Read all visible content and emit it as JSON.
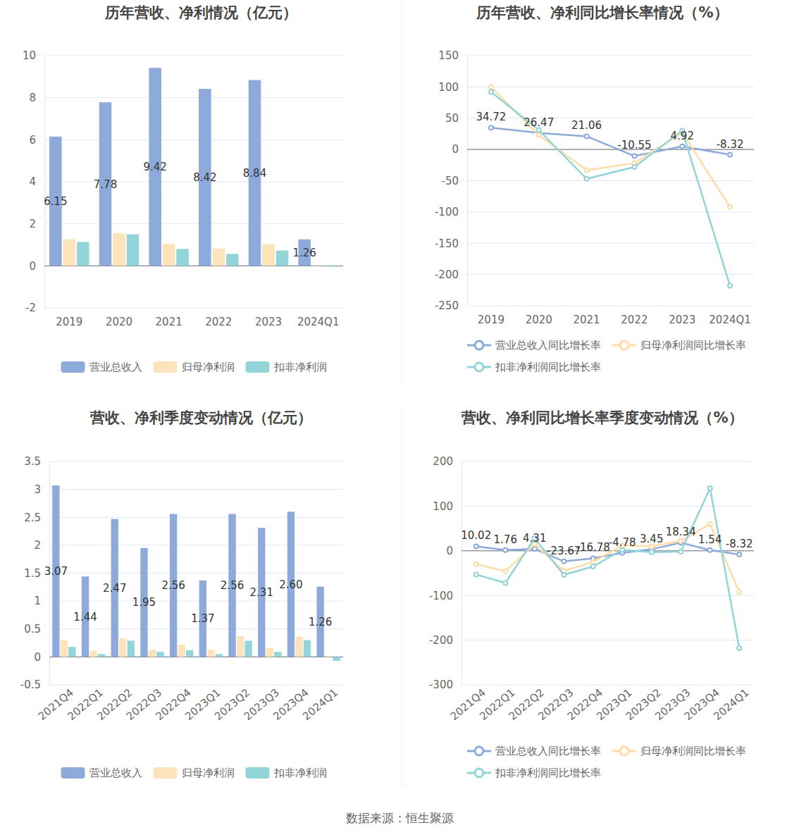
{
  "chart_data": [
    {
      "type": "bar",
      "title": "历年营收、净利情况（亿元）",
      "categories": [
        "2019",
        "2020",
        "2021",
        "2022",
        "2023",
        "2024Q1"
      ],
      "series": [
        {
          "name": "营业总收入",
          "color": "#8eaadb",
          "values": [
            6.15,
            7.78,
            9.42,
            8.42,
            8.84,
            1.26
          ],
          "data_labels": true
        },
        {
          "name": "归母净利润",
          "color": "#fde3bb",
          "values": [
            1.27,
            1.55,
            1.05,
            0.82,
            1.03,
            0.01
          ]
        },
        {
          "name": "扣非净利润",
          "color": "#92d4d8",
          "values": [
            1.14,
            1.5,
            0.8,
            0.57,
            0.73,
            -0.04
          ]
        }
      ],
      "ylim": [
        -2,
        10
      ],
      "yticks": [
        -2,
        0,
        2,
        4,
        6,
        8,
        10
      ],
      "grid": true,
      "legend": "bottom"
    },
    {
      "type": "line",
      "title": "历年营收、净利同比增长率情况（%）",
      "categories": [
        "2019",
        "2020",
        "2021",
        "2022",
        "2023",
        "2024Q1"
      ],
      "series": [
        {
          "name": "营业总收入同比增长率",
          "color": "#8eaadb",
          "values": [
            34.72,
            26.47,
            21.06,
            -10.55,
            4.92,
            -8.32
          ],
          "data_labels": true
        },
        {
          "name": "归母净利润同比增长率",
          "color": "#fddca6",
          "values": [
            100,
            23,
            -33,
            -22,
            27,
            -92
          ]
        },
        {
          "name": "扣非净利润同比增长率",
          "color": "#92d4d8",
          "values": [
            92,
            31,
            -47,
            -28,
            30,
            -218
          ]
        }
      ],
      "ylim": [
        -250,
        150
      ],
      "yticks": [
        -250,
        -200,
        -150,
        -100,
        -50,
        0,
        50,
        100,
        150
      ],
      "grid": true,
      "legend": "bottom",
      "marker": "circle"
    },
    {
      "type": "bar",
      "title": "营收、净利季度变动情况（亿元）",
      "categories": [
        "2021Q4",
        "2022Q1",
        "2022Q2",
        "2022Q3",
        "2022Q4",
        "2023Q1",
        "2023Q2",
        "2023Q3",
        "2023Q4",
        "2024Q1"
      ],
      "series": [
        {
          "name": "营业总收入",
          "color": "#8eaadb",
          "values": [
            3.07,
            1.44,
            2.47,
            1.95,
            2.56,
            1.37,
            2.56,
            2.31,
            2.6,
            1.26
          ],
          "value_labels": [
            "3.07",
            "1.44",
            "2.47",
            "1.95",
            "2.56",
            "1.37",
            "2.56",
            "2.31",
            "2.60",
            "1.26"
          ],
          "data_labels": true
        },
        {
          "name": "归母净利润",
          "color": "#fde3bb",
          "values": [
            0.3,
            0.11,
            0.33,
            0.13,
            0.22,
            0.13,
            0.37,
            0.16,
            0.36,
            0.01
          ]
        },
        {
          "name": "扣非净利润",
          "color": "#92d4d8",
          "values": [
            0.18,
            0.05,
            0.29,
            0.09,
            0.12,
            0.05,
            0.29,
            0.09,
            0.3,
            -0.07
          ]
        }
      ],
      "ylim": [
        -0.5,
        3.5
      ],
      "yticks": [
        -0.5,
        0,
        0.5,
        1,
        1.5,
        2,
        2.5,
        3,
        3.5
      ],
      "grid": true,
      "legend": "bottom"
    },
    {
      "type": "line",
      "title": "营收、净利同比增长率季度变动情况（%）",
      "categories": [
        "2021Q4",
        "2022Q1",
        "2022Q2",
        "2022Q3",
        "2022Q4",
        "2023Q1",
        "2023Q2",
        "2023Q3",
        "2023Q4",
        "2024Q1"
      ],
      "series": [
        {
          "name": "营业总收入同比增长率",
          "color": "#8eaadb",
          "values": [
            10.02,
            1.76,
            4.31,
            -23.67,
            -16.78,
            -4.78,
            3.45,
            18.34,
            1.54,
            -8.32
          ],
          "data_labels": true
        },
        {
          "name": "归母净利润同比增长率",
          "color": "#fddca6",
          "values": [
            -30,
            -46,
            15,
            -45,
            -25,
            12,
            10,
            22,
            60,
            -92
          ]
        },
        {
          "name": "扣非净利润同比增长率",
          "color": "#92d4d8",
          "values": [
            -53,
            -72,
            28,
            -54,
            -35,
            2,
            -3,
            -2,
            140,
            -218
          ]
        }
      ],
      "ylim": [
        -300,
        200
      ],
      "yticks": [
        -300,
        -200,
        -100,
        0,
        100,
        200
      ],
      "grid": true,
      "legend": "bottom",
      "marker": "circle"
    }
  ],
  "source": "数据来源：恒生聚源"
}
